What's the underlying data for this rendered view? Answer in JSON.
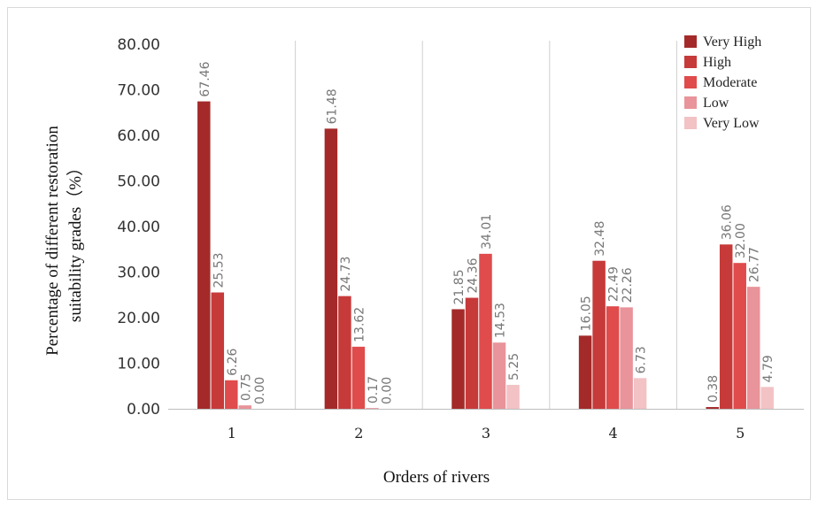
{
  "chart_data": {
    "type": "bar",
    "title": "",
    "xlabel": "Orders of rivers",
    "ylabel_line1": "Percentage of different restoration",
    "ylabel_line2": "suitability grades（%）",
    "ylim": [
      0,
      80
    ],
    "yticks": [
      "0.00",
      "10.00",
      "20.00",
      "30.00",
      "40.00",
      "50.00",
      "60.00",
      "70.00",
      "80.00"
    ],
    "categories": [
      "1",
      "2",
      "3",
      "4",
      "5"
    ],
    "grid": "vertical separators between categories",
    "legend_position": "top-right",
    "series": [
      {
        "name": "Very High",
        "color": "#a42a2a",
        "values": [
          67.46,
          61.48,
          21.85,
          16.05,
          0.38
        ],
        "labels": [
          "67.46",
          "61.48",
          "21.85",
          "16.05",
          "0.38"
        ]
      },
      {
        "name": "High",
        "color": "#c73a3a",
        "values": [
          25.53,
          24.73,
          24.36,
          32.48,
          36.06
        ],
        "labels": [
          "25.53",
          "24.73",
          "24.36",
          "32.48",
          "36.06"
        ]
      },
      {
        "name": "Moderate",
        "color": "#e04b4b",
        "values": [
          6.26,
          13.62,
          34.01,
          22.49,
          32.0
        ],
        "labels": [
          "6.26",
          "13.62",
          "34.01",
          "22.49",
          "32.00"
        ]
      },
      {
        "name": "Low",
        "color": "#e8949a",
        "values": [
          0.75,
          0.17,
          14.53,
          22.26,
          26.77
        ],
        "labels": [
          "0.75",
          "0.17",
          "14.53",
          "22.26",
          "26.77"
        ]
      },
      {
        "name": "Very Low",
        "color": "#f2c2c4",
        "values": [
          0.0,
          0.0,
          5.25,
          6.73,
          4.79
        ],
        "labels": [
          "0.00",
          "0.00",
          "5.25",
          "6.73",
          "4.79"
        ]
      }
    ]
  }
}
